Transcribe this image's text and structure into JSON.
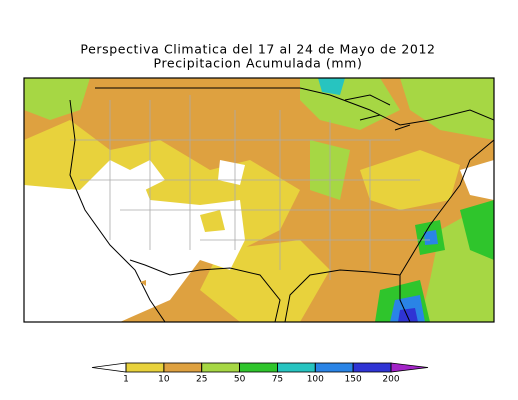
{
  "title": [
    "Perspectiva Climatica del 17 al 24 de Mayo de 2012",
    "Precipitacion Acumulada (mm)"
  ],
  "colorbar": {
    "ticks": [
      1,
      10,
      25,
      50,
      75,
      100,
      150,
      200
    ],
    "colors": [
      "#ffffff",
      "#e8d23c",
      "#dea140",
      "#a6d744",
      "#2fc52c",
      "#27c4c0",
      "#2a84e6",
      "#2f34d4",
      "#a324c8"
    ]
  }
}
